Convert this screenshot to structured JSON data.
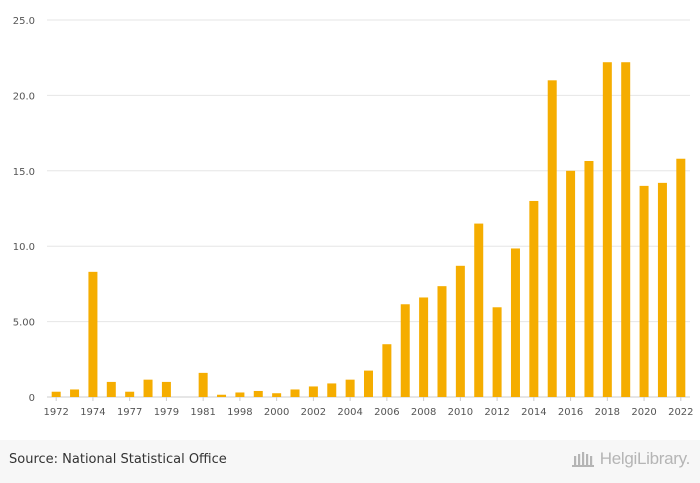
{
  "chart_data": {
    "type": "bar",
    "title": "",
    "xlabel": "",
    "ylabel": "",
    "ylim": [
      0,
      25
    ],
    "yticks": [
      "0",
      "5.00",
      "10.0",
      "15.0",
      "20.0",
      "25.0"
    ],
    "grid": true,
    "bar_color": "#f5ad00",
    "categories": [
      "1972",
      "1973",
      "1974",
      "1976",
      "1977",
      "1978",
      "1979",
      "1980",
      "1981",
      "1982",
      "1998",
      "1999",
      "2000",
      "2001",
      "2002",
      "2003",
      "2004",
      "2005",
      "2006",
      "2007",
      "2008",
      "2009",
      "2010",
      "2011",
      "2012",
      "2013",
      "2014",
      "2015",
      "2016",
      "2017",
      "2018",
      "2019",
      "2020",
      "2021",
      "2022"
    ],
    "values": [
      0.35,
      0.5,
      8.3,
      1.0,
      0.35,
      1.15,
      1.0,
      0.0,
      1.6,
      0.15,
      0.3,
      0.4,
      0.25,
      0.5,
      0.7,
      0.9,
      1.15,
      1.75,
      3.5,
      6.15,
      6.6,
      7.35,
      8.7,
      11.5,
      5.95,
      9.85,
      13.0,
      21.0,
      15.0,
      15.65,
      22.2,
      22.2,
      14.0,
      14.2,
      15.8
    ],
    "xtick_labels": [
      "1972",
      "1974",
      "1977",
      "1979",
      "1981",
      "1998",
      "2000",
      "2002",
      "2004",
      "2006",
      "2008",
      "2010",
      "2012",
      "2014",
      "2016",
      "2018",
      "2020",
      "2022"
    ]
  },
  "footer": {
    "source": "Source: National Statistical Office",
    "brand": "HelgiLibrary."
  }
}
